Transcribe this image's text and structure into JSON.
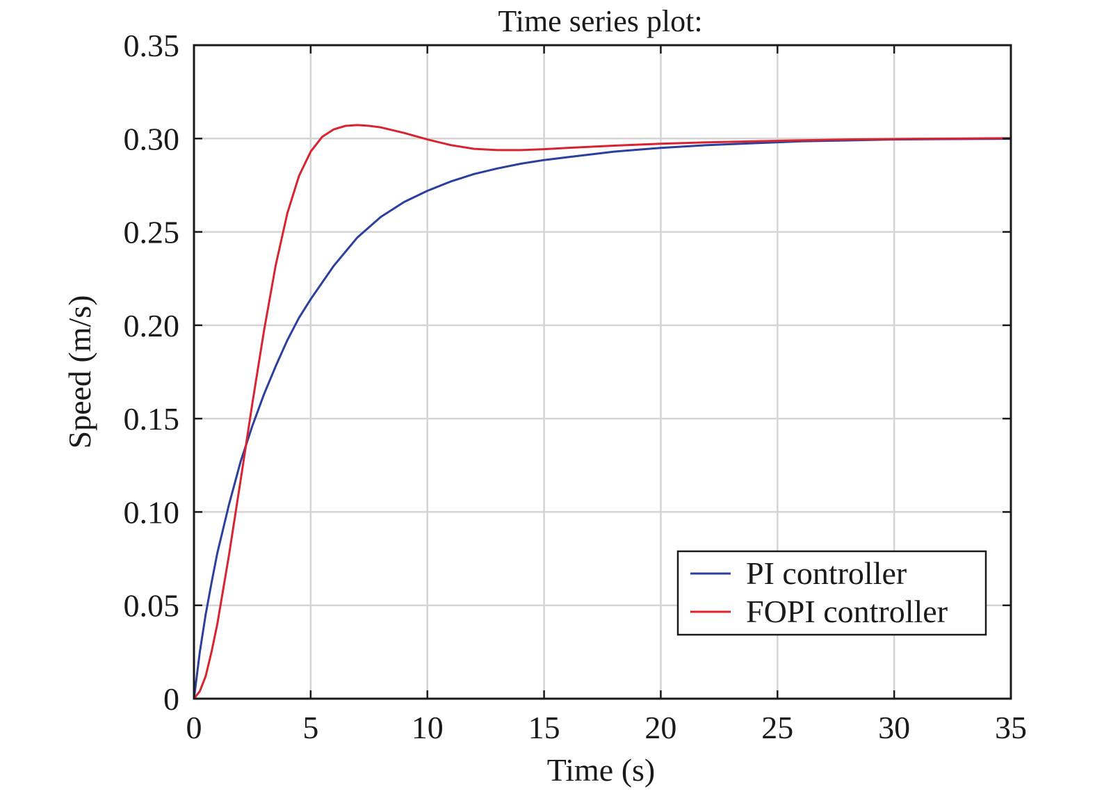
{
  "chart_data": {
    "type": "line",
    "title": "Time series plot:",
    "xlabel": "Time (s)",
    "ylabel": "Speed (m/s)",
    "xlim": [
      0,
      35
    ],
    "ylim": [
      0,
      0.35
    ],
    "xticks": [
      0,
      5,
      10,
      15,
      20,
      25,
      30,
      35
    ],
    "xtick_labels": [
      "0",
      "5",
      "10",
      "15",
      "20",
      "25",
      "30",
      "35"
    ],
    "yticks": [
      0,
      0.05,
      0.1,
      0.15,
      0.2,
      0.25,
      0.3,
      0.35
    ],
    "ytick_labels": [
      "0",
      "0.05",
      "0.10",
      "0.15",
      "0.20",
      "0.25",
      "0.30",
      "0.35"
    ],
    "grid": true,
    "legend_position": "bottom-right",
    "series": [
      {
        "name": "PI controller",
        "color": "#2b3f9e",
        "points": [
          [
            0,
            0
          ],
          [
            0.25,
            0.025
          ],
          [
            0.5,
            0.045
          ],
          [
            0.75,
            0.062
          ],
          [
            1,
            0.078
          ],
          [
            1.5,
            0.104
          ],
          [
            2,
            0.127
          ],
          [
            2.5,
            0.146
          ],
          [
            3,
            0.163
          ],
          [
            3.5,
            0.178
          ],
          [
            4,
            0.192
          ],
          [
            4.5,
            0.204
          ],
          [
            5,
            0.214
          ],
          [
            6,
            0.232
          ],
          [
            7,
            0.247
          ],
          [
            8,
            0.258
          ],
          [
            9,
            0.266
          ],
          [
            10,
            0.272
          ],
          [
            11,
            0.277
          ],
          [
            12,
            0.281
          ],
          [
            13,
            0.284
          ],
          [
            14,
            0.2865
          ],
          [
            15,
            0.2885
          ],
          [
            16,
            0.29
          ],
          [
            17,
            0.2915
          ],
          [
            18,
            0.293
          ],
          [
            19,
            0.294
          ],
          [
            20,
            0.295
          ],
          [
            22,
            0.2965
          ],
          [
            24,
            0.2975
          ],
          [
            26,
            0.2985
          ],
          [
            28,
            0.299
          ],
          [
            30,
            0.2995
          ],
          [
            32,
            0.2997
          ],
          [
            35,
            0.2999
          ]
        ]
      },
      {
        "name": "FOPI controller",
        "color": "#d9232e",
        "points": [
          [
            0,
            0
          ],
          [
            0.25,
            0.004
          ],
          [
            0.5,
            0.012
          ],
          [
            0.75,
            0.025
          ],
          [
            1,
            0.04
          ],
          [
            1.5,
            0.077
          ],
          [
            2,
            0.117
          ],
          [
            2.5,
            0.158
          ],
          [
            3,
            0.197
          ],
          [
            3.5,
            0.232
          ],
          [
            4,
            0.26
          ],
          [
            4.5,
            0.28
          ],
          [
            5,
            0.293
          ],
          [
            5.5,
            0.301
          ],
          [
            6,
            0.305
          ],
          [
            6.5,
            0.3068
          ],
          [
            7,
            0.3072
          ],
          [
            7.5,
            0.3068
          ],
          [
            8,
            0.306
          ],
          [
            9,
            0.303
          ],
          [
            10,
            0.2995
          ],
          [
            11,
            0.2965
          ],
          [
            12,
            0.2945
          ],
          [
            13,
            0.2938
          ],
          [
            14,
            0.2938
          ],
          [
            15,
            0.2943
          ],
          [
            16,
            0.295
          ],
          [
            18,
            0.2962
          ],
          [
            20,
            0.2972
          ],
          [
            22,
            0.298
          ],
          [
            25,
            0.2988
          ],
          [
            28,
            0.2995
          ],
          [
            31,
            0.2999
          ],
          [
            35,
            0.3002
          ]
        ]
      }
    ]
  }
}
